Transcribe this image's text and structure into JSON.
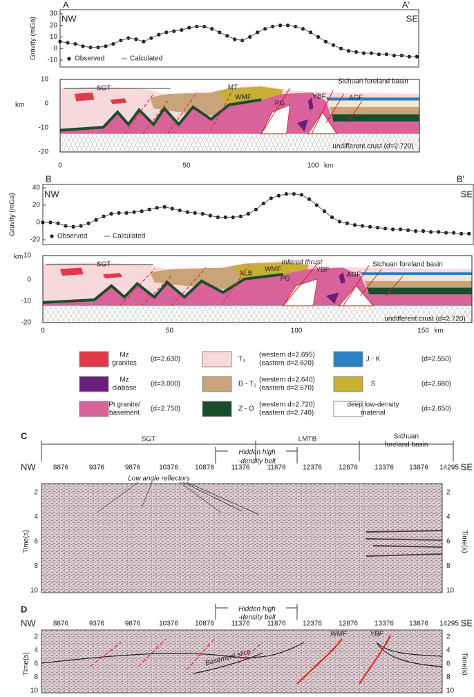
{
  "chart_data": [
    {
      "type": "line",
      "label": "A",
      "label_end": "A'",
      "left": "NW",
      "right": "SE",
      "y_label": "Gravity (mGa)",
      "x": [
        0,
        3,
        6,
        9,
        12,
        15,
        18,
        21,
        24,
        27,
        30,
        33,
        36,
        39,
        42,
        45,
        48,
        51,
        54,
        57,
        60,
        63,
        66,
        69,
        72,
        75,
        78,
        81,
        84,
        87,
        90,
        93,
        96,
        99,
        102,
        105,
        108,
        111,
        114,
        117,
        120,
        123,
        126,
        129,
        132,
        135,
        138,
        141
      ],
      "series": [
        {
          "name": "Observed",
          "style": "markers",
          "color": "#111111",
          "values": [
            6,
            5,
            4,
            2,
            1,
            1,
            2,
            4,
            7,
            9,
            8,
            6,
            9,
            12,
            14,
            15,
            16,
            18,
            19,
            19,
            17,
            14,
            11,
            8,
            7,
            10,
            14,
            17,
            19,
            20,
            20,
            19,
            17,
            14,
            10,
            6,
            3,
            0,
            -2,
            -3,
            -4,
            -4,
            -5,
            -5,
            -6,
            -6,
            -7,
            -7
          ]
        },
        {
          "name": "Calculated",
          "style": "line",
          "color": "#555555",
          "values": [
            6,
            5,
            4,
            2,
            1,
            1,
            2,
            4,
            7,
            9,
            8,
            6,
            9,
            12,
            14,
            15,
            16,
            18,
            19,
            19,
            17,
            14,
            11,
            8,
            7,
            10,
            14,
            17,
            19,
            20,
            20,
            19,
            17,
            14,
            10,
            6,
            3,
            0,
            -2,
            -3,
            -4,
            -4,
            -5,
            -5,
            -6,
            -6,
            -7,
            -7
          ]
        }
      ],
      "xlim": [
        0,
        142
      ],
      "ylim": [
        -10,
        30
      ],
      "yticks": [
        30,
        20,
        10,
        0,
        -10
      ]
    },
    {
      "type": "line",
      "label": "B",
      "label_end": "B'",
      "left": "NW",
      "right": "SE",
      "y_label": "Gravity (mGa)",
      "x": [
        0,
        3,
        6,
        9,
        12,
        15,
        18,
        21,
        24,
        27,
        30,
        33,
        36,
        39,
        42,
        45,
        48,
        51,
        54,
        57,
        60,
        63,
        66,
        69,
        72,
        75,
        78,
        81,
        84,
        87,
        90,
        93,
        96,
        99,
        102,
        105,
        108,
        111,
        114,
        117,
        120,
        123,
        126,
        129,
        132,
        135,
        138,
        141,
        144,
        147,
        150,
        153,
        156,
        159,
        162,
        165,
        168
      ],
      "series": [
        {
          "name": "Observed",
          "style": "markers",
          "color": "#111111",
          "values": [
            0,
            0,
            -1,
            -4,
            -5,
            -4,
            -1,
            3,
            7,
            10,
            11,
            11,
            12,
            13,
            15,
            17,
            18,
            16,
            14,
            12,
            11,
            10,
            8,
            6,
            6,
            6,
            7,
            10,
            15,
            22,
            28,
            31,
            33,
            33,
            32,
            27,
            20,
            13,
            6,
            1,
            -1,
            -3,
            -4,
            -5,
            -6,
            -7,
            -8,
            -8,
            -9,
            -10,
            -10,
            -11,
            -11,
            -12,
            -12,
            -13,
            -13
          ]
        },
        {
          "name": "Calculated",
          "style": "line",
          "color": "#555555",
          "values": [
            0,
            0,
            -1,
            -4,
            -5,
            -4,
            -1,
            3,
            7,
            10,
            11,
            11,
            12,
            13,
            15,
            17,
            18,
            16,
            14,
            12,
            11,
            10,
            8,
            6,
            6,
            6,
            7,
            10,
            15,
            22,
            28,
            31,
            33,
            33,
            32,
            27,
            20,
            13,
            6,
            1,
            -1,
            -3,
            -4,
            -5,
            -6,
            -7,
            -8,
            -8,
            -9,
            -10,
            -10,
            -11,
            -11,
            -12,
            -12,
            -13,
            -13
          ]
        }
      ],
      "xlim": [
        0,
        170
      ],
      "ylim": [
        -20,
        40
      ],
      "yticks": [
        40,
        20,
        0,
        -20
      ]
    }
  ],
  "sections": [
    {
      "y_label": "km",
      "yticks": [
        10,
        0,
        -10,
        -20
      ],
      "xticks": [
        0,
        50,
        100
      ],
      "x_unit": "km",
      "labels": [
        "SGT",
        "MT",
        "WMF",
        "PG",
        "YBF",
        "AGF",
        "Sichuan foreland basin",
        "undifferent crust (d=2.720)"
      ]
    },
    {
      "y_label": "km",
      "yticks": [
        10,
        0,
        -10,
        -20
      ],
      "xticks": [
        0,
        50,
        100,
        150
      ],
      "x_unit": "km",
      "labels": [
        "SGT",
        "XLB",
        "WMF",
        "Infered thrust",
        "PG",
        "YBF",
        "AGF",
        "Sichuan foreland basin",
        "undifferent crust (d=2.720)"
      ]
    }
  ],
  "legend": [
    {
      "name": [
        "Mz",
        "granites"
      ],
      "density": [
        "(d=2.630)"
      ]
    },
    {
      "name": [
        "Mz",
        "diabase"
      ],
      "density": [
        "(d=3.000)"
      ]
    },
    {
      "name": [
        "Pt granite/",
        "basement"
      ],
      "density": [
        "(d=2.750)"
      ]
    },
    {
      "name": [
        "T₃"
      ],
      "density": [
        "(western d=2.695)",
        "(eastern  d=2.620)"
      ]
    },
    {
      "name": [
        "D - T₂"
      ],
      "density": [
        "(western d=2.640)",
        "(eastern d=2.670)"
      ]
    },
    {
      "name": [
        "Z - O"
      ],
      "density": [
        "(western d=2.720)",
        "(eastern  d=2.740)"
      ]
    },
    {
      "name": [
        "J - K"
      ],
      "density": [
        "(d=2.550)"
      ]
    },
    {
      "name": [
        "S"
      ],
      "density": [
        "(d=2.680)"
      ]
    },
    {
      "name": [
        "deep low-density",
        "material"
      ],
      "density": [
        "(d=2.650)"
      ]
    }
  ],
  "seismic": [
    {
      "letter": "C",
      "left": "NW",
      "right": "SE",
      "zones": [
        "SGT",
        "LMTB",
        [
          "Sichuan",
          "foreland basin"
        ]
      ],
      "hidden": [
        "Hidden high",
        "-density belt"
      ],
      "xticks": [
        8876,
        9376,
        9876,
        10376,
        10876,
        11376,
        11876,
        12376,
        12876,
        13376,
        13876,
        14295
      ],
      "yticks": [
        2,
        4,
        6,
        8,
        10
      ],
      "y_label": "Time(s)",
      "labels": [
        "Low angle reflectors"
      ]
    },
    {
      "letter": "D",
      "left": "NW",
      "right": "SE",
      "hidden": [
        "Hidden high",
        "-density belt"
      ],
      "xticks": [
        8876,
        9376,
        9876,
        10376,
        10876,
        11376,
        11876,
        12376,
        12876,
        13376,
        13876,
        14295
      ],
      "yticks": [
        2,
        4,
        6,
        8,
        10
      ],
      "y_label": "Time(s)",
      "labels": [
        "WMF",
        "YBF",
        "Basement slice"
      ]
    }
  ]
}
